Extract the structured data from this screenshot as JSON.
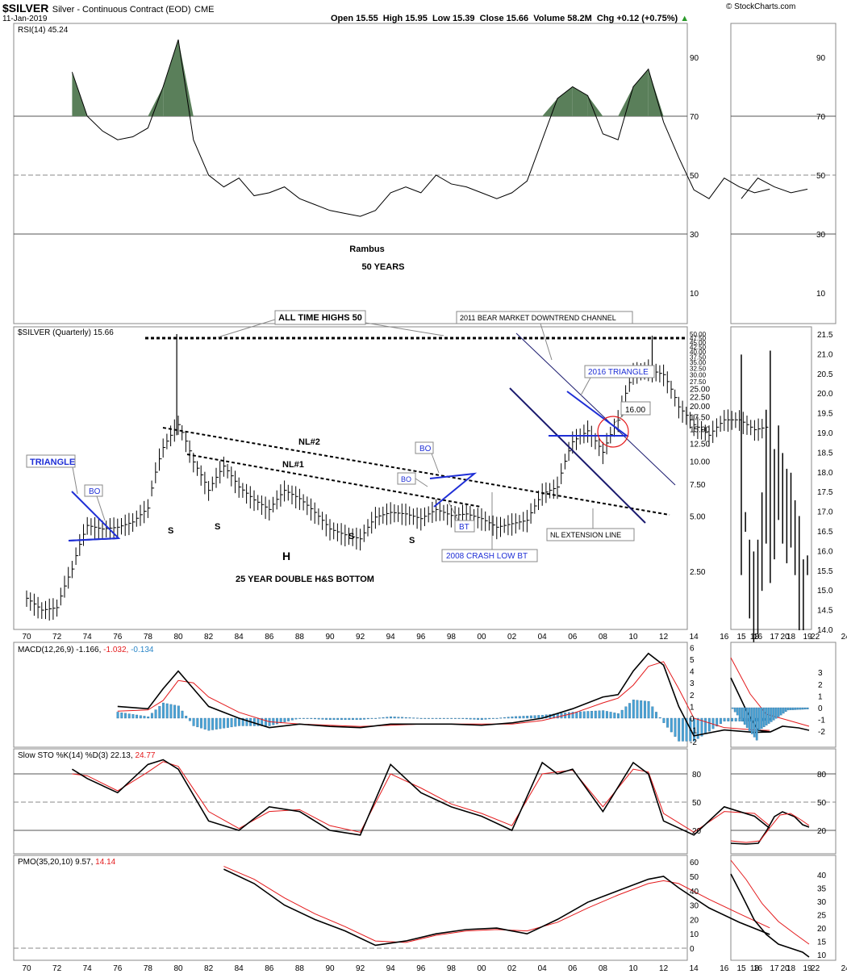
{
  "header": {
    "symbol": "$SILVER",
    "description": "Silver - Continuous Contract (EOD)",
    "exchange": "CME",
    "date": "11-Jan-2019",
    "brand": "© StockCharts.com",
    "quote": "Open 15.55  High 15.95  Low 15.39  Close 15.66  Volume 58.2M  Chg +0.12 (+0.75%)",
    "quote_arrow": "▲"
  },
  "colors": {
    "price_bar": "#000000",
    "rsi_fill": "#5a7f5a",
    "macd_hist": "#4aa3d6",
    "signal_red": "#e41a1c",
    "annotation_blue": "#1f2fd6",
    "channel_navy": "#1a1a6e",
    "grid": "#999999"
  },
  "rsi": {
    "title": "RSI(14) 45.24",
    "levels": [
      "90",
      "70",
      "50",
      "30",
      "10"
    ]
  },
  "annotations": {
    "rambus": "Rambus",
    "fifty_years": "50 YEARS",
    "all_time_highs": "ALL TIME HIGHS 50",
    "bear_channel": "2011 BEAR MARKET DOWNTREND CHANNEL",
    "triangle_left": "TRIANGLE",
    "bo_left": "BO",
    "nl2": "NL#2",
    "nl1": "NL#1",
    "s": "S",
    "h": "H",
    "double_hs": "25 YEAR DOUBLE H&S BOTTOM",
    "bo_a": "BO",
    "bo_b": "BO",
    "bt": "BT",
    "crash_bt": "2008 CRASH LOW BT",
    "triangle_2016": "2016 TRIANGLE",
    "target": "16.00",
    "nl_extension": "NL EXTENSION LINE"
  },
  "price_panel": {
    "title": "$SILVER (Quarterly) 15.66",
    "right_axis": [
      "50.00",
      "47.50",
      "45.00",
      "42.50",
      "40.00",
      "37.50",
      "35.00",
      "32.50",
      "30.00",
      "27.50",
      "25.00",
      "22.50",
      "20.00",
      "17.50",
      "15.00",
      "12.50",
      "10.00",
      "7.50",
      "5.00",
      "2.50"
    ],
    "zoom_axis": [
      "21.5",
      "21.0",
      "20.5",
      "20.0",
      "19.5",
      "19.0",
      "18.5",
      "18.0",
      "17.5",
      "17.0",
      "16.5",
      "16.0",
      "15.5",
      "15.0",
      "14.5",
      "14.0"
    ]
  },
  "macd": {
    "title": "MACD(12,26,9)",
    "v1": "-1.166,",
    "v2": "-1.032,",
    "v3": "-0.134",
    "right_axis": [
      "6",
      "5",
      "4",
      "3",
      "2",
      "1",
      "0",
      "-1",
      "-2"
    ],
    "zoom_axis": [
      "3",
      "2",
      "1",
      "0",
      "-1",
      "-2"
    ]
  },
  "sto": {
    "title": "Slow STO %K(14) %D(3) 22.13,",
    "v2": "24.77",
    "levels": [
      "80",
      "50",
      "20"
    ]
  },
  "pmo": {
    "title": "PMO(35,20,10) 9.57,",
    "v2": "14.14",
    "right_axis": [
      "60",
      "50",
      "40",
      "30",
      "20",
      "10",
      "0"
    ],
    "zoom_axis": [
      "40",
      "35",
      "30",
      "25",
      "20",
      "15",
      "10"
    ]
  },
  "x_axis": [
    "70",
    "72",
    "74",
    "76",
    "78",
    "80",
    "82",
    "84",
    "86",
    "88",
    "90",
    "92",
    "94",
    "96",
    "98",
    "00",
    "02",
    "04",
    "06",
    "08",
    "10",
    "12",
    "14",
    "16",
    "18",
    "20",
    "22",
    "24"
  ],
  "zoom_x_axis": [
    "15",
    "16",
    "17",
    "18",
    "19"
  ],
  "chart_data": {
    "type": "line",
    "title": "$SILVER (Quarterly) 15.66",
    "x_unit": "year",
    "y_scale": "log",
    "price_quarterly_close": {
      "x": [
        1970,
        1971,
        1972,
        1973,
        1974,
        1975,
        1976,
        1977,
        1978,
        1979,
        1980,
        1981,
        1982,
        1983,
        1984,
        1985,
        1986,
        1987,
        1988,
        1989,
        1990,
        1991,
        1992,
        1993,
        1994,
        1995,
        1996,
        1997,
        1998,
        1999,
        2000,
        2001,
        2002,
        2003,
        2004,
        2005,
        2006,
        2007,
        2008,
        2009,
        2010,
        2011,
        2012,
        2013,
        2014,
        2015,
        2016,
        2017,
        2018,
        2019
      ],
      "y": [
        1.8,
        1.55,
        1.6,
        2.6,
        4.5,
        4.3,
        4.4,
        4.7,
        5.6,
        12.0,
        16.0,
        10.0,
        7.0,
        9.5,
        7.3,
        6.2,
        5.5,
        7.0,
        6.3,
        5.3,
        4.3,
        4.0,
        3.8,
        5.0,
        5.3,
        5.2,
        4.9,
        5.5,
        5.1,
        5.2,
        4.9,
        4.4,
        4.6,
        4.8,
        6.7,
        7.3,
        12.9,
        14.8,
        11.3,
        16.9,
        30.6,
        32.0,
        30.0,
        20.0,
        16.0,
        14.0,
        17.0,
        17.0,
        15.0,
        15.66
      ]
    },
    "rsi": {
      "x": [
        1973,
        1974,
        1975,
        1976,
        1977,
        1978,
        1979,
        1980,
        1981,
        1982,
        1983,
        1984,
        1985,
        1986,
        1987,
        1988,
        1989,
        1990,
        1991,
        1992,
        1993,
        1994,
        1995,
        1996,
        1997,
        1998,
        1999,
        2000,
        2001,
        2002,
        2003,
        2004,
        2005,
        2006,
        2007,
        2008,
        2009,
        2010,
        2011,
        2012,
        2013,
        2014,
        2015,
        2016,
        2017,
        2018,
        2019
      ],
      "y": [
        85,
        70,
        65,
        62,
        63,
        66,
        80,
        96,
        62,
        50,
        46,
        49,
        43,
        44,
        46,
        42,
        40,
        38,
        37,
        36,
        38,
        44,
        46,
        44,
        50,
        47,
        46,
        44,
        42,
        44,
        48,
        62,
        76,
        80,
        77,
        64,
        62,
        80,
        86,
        68,
        56,
        45,
        42,
        49,
        46,
        44,
        45.24
      ]
    },
    "macd": {
      "x": [
        1976,
        1978,
        1979,
        1980,
        1981,
        1982,
        1984,
        1986,
        1988,
        1990,
        1992,
        1994,
        1996,
        1998,
        2000,
        2002,
        2004,
        2006,
        2008,
        2009,
        2010,
        2011,
        2012,
        2013,
        2014,
        2016,
        2018,
        2019
      ],
      "macd": [
        1.0,
        0.8,
        2.5,
        4.0,
        2.5,
        1.0,
        0.0,
        -0.8,
        -0.5,
        -0.7,
        -0.8,
        -0.5,
        -0.5,
        -0.5,
        -0.6,
        -0.4,
        0.0,
        0.8,
        1.8,
        2.0,
        4.0,
        5.5,
        4.5,
        1.0,
        -1.5,
        -1.0,
        -1.2,
        -1.166
      ],
      "signal": [
        0.6,
        0.7,
        1.5,
        3.2,
        3.0,
        1.8,
        0.5,
        -0.3,
        -0.5,
        -0.6,
        -0.7,
        -0.6,
        -0.5,
        -0.5,
        -0.5,
        -0.5,
        -0.2,
        0.4,
        1.3,
        1.7,
        2.8,
        4.4,
        4.8,
        2.5,
        0.0,
        -0.8,
        -1.0,
        -1.032
      ],
      "histogram_last": -0.134,
      "ylim": [
        -2,
        6
      ]
    },
    "slow_sto": {
      "x": [
        1973,
        1974,
        1976,
        1978,
        1979,
        1980,
        1982,
        1984,
        1986,
        1988,
        1990,
        1992,
        1994,
        1996,
        1998,
        2000,
        2002,
        2004,
        2005,
        2006,
        2008,
        2010,
        2011,
        2012,
        2014,
        2016,
        2018,
        2019
      ],
      "k": [
        85,
        75,
        60,
        90,
        95,
        85,
        30,
        20,
        45,
        40,
        20,
        15,
        90,
        60,
        45,
        35,
        20,
        92,
        80,
        85,
        40,
        92,
        80,
        30,
        15,
        45,
        35,
        22.13
      ],
      "d": [
        80,
        78,
        62,
        82,
        93,
        88,
        40,
        22,
        40,
        42,
        25,
        18,
        80,
        65,
        48,
        38,
        25,
        80,
        82,
        84,
        45,
        85,
        82,
        38,
        18,
        40,
        38,
        24.77
      ],
      "levels": [
        80,
        50,
        20
      ]
    },
    "pmo": {
      "x": [
        1983,
        1985,
        1987,
        1989,
        1991,
        1993,
        1995,
        1997,
        1999,
        2001,
        2003,
        2005,
        2007,
        2009,
        2011,
        2012,
        2013,
        2015,
        2017,
        2019
      ],
      "pmo": [
        55,
        45,
        30,
        20,
        12,
        2,
        5,
        10,
        13,
        14,
        10,
        20,
        32,
        40,
        48,
        50,
        42,
        28,
        18,
        9.57
      ],
      "signal": [
        57,
        48,
        35,
        24,
        15,
        5,
        4,
        9,
        12,
        13,
        12,
        18,
        28,
        37,
        45,
        47,
        45,
        34,
        24,
        14.14
      ]
    }
  }
}
